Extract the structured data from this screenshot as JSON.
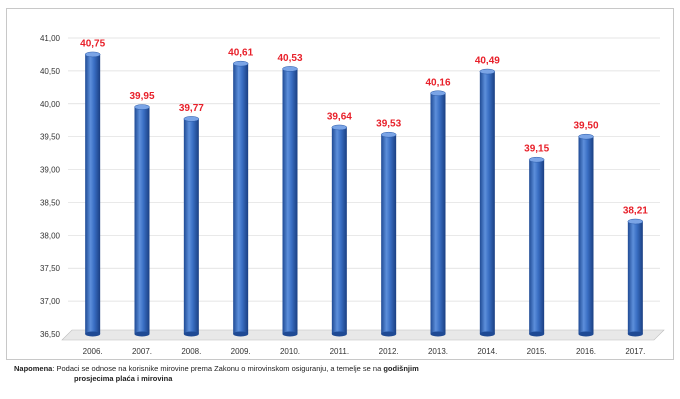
{
  "chart_data": {
    "type": "bar",
    "categories": [
      "2006.",
      "2007.",
      "2008.",
      "2009.",
      "2010.",
      "2011.",
      "2012.",
      "2013.",
      "2014.",
      "2015.",
      "2016.",
      "2017."
    ],
    "values": [
      40.75,
      39.95,
      39.77,
      40.61,
      40.53,
      39.64,
      39.53,
      40.16,
      40.49,
      39.15,
      39.5,
      38.21
    ],
    "value_labels": [
      "40,75",
      "39,95",
      "39,77",
      "40,61",
      "40,53",
      "39,64",
      "39,53",
      "40,16",
      "40,49",
      "39,15",
      "39,50",
      "38,21"
    ],
    "ylim": [
      36.5,
      41.0
    ],
    "yticks": [
      36.5,
      37.0,
      37.5,
      38.0,
      38.5,
      39.0,
      39.5,
      40.0,
      40.5,
      41.0
    ],
    "ytick_labels": [
      "36,50",
      "37,00",
      "37,50",
      "38,00",
      "38,50",
      "39,00",
      "39,50",
      "40,00",
      "40,50",
      "41,00"
    ],
    "grid": true,
    "colors": {
      "bar": "#3a6fc4",
      "bar_dark": "#1f4a94",
      "bar_light": "#7aa4e6",
      "label": "#e8202a"
    }
  },
  "footnote": {
    "label": "Napomena",
    "text": ": Podaci se odnose na korisnike mirovine prema Zakonu o mirovinskom osiguranju, a temelje se na ",
    "bold_end": "godišnjim",
    "line2": "prosjecima plaća i mirovina"
  }
}
